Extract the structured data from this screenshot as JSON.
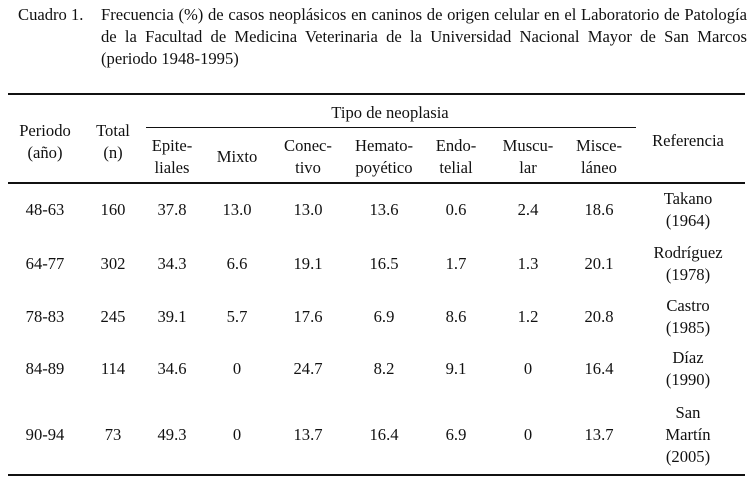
{
  "caption": {
    "label": "Cuadro 1.",
    "text": "Frecuencia (%) de casos neoplásicos en caninos de origen celular en el Laboratorio de Patología de la Facultad de Medicina Veterinaria de la Universidad Nacional Mayor de San Marcos (periodo 1948-1995)"
  },
  "table": {
    "group_header": "Tipo de neoplasia",
    "headers": {
      "periodo": "Periodo\n(año)",
      "total": "Total\n(n)",
      "epiteliales": "Epite-\nliales",
      "mixto": "Mixto",
      "conectivo": "Conec-\ntivo",
      "hematopoyetico": "Hemato-\npoyético",
      "endotelial": "Endo-\ntelial",
      "muscular": "Muscu-\nlar",
      "miscelaneo": "Misce-\nláneo",
      "referencia": "Referencia"
    },
    "rows": [
      {
        "periodo": "48-63",
        "total": "160",
        "epiteliales": "37.8",
        "mixto": "13.0",
        "conectivo": "13.0",
        "hematopoyetico": "13.6",
        "endotelial": "0.6",
        "muscular": "2.4",
        "miscelaneo": "18.6",
        "referencia": "Takano\n(1964)"
      },
      {
        "periodo": "64-77",
        "total": "302",
        "epiteliales": "34.3",
        "mixto": "6.6",
        "conectivo": "19.1",
        "hematopoyetico": "16.5",
        "endotelial": "1.7",
        "muscular": "1.3",
        "miscelaneo": "20.1",
        "referencia": "Rodríguez\n(1978)"
      },
      {
        "periodo": "78-83",
        "total": "245",
        "epiteliales": "39.1",
        "mixto": "5.7",
        "conectivo": "17.6",
        "hematopoyetico": "6.9",
        "endotelial": "8.6",
        "muscular": "1.2",
        "miscelaneo": "20.8",
        "referencia": "Castro\n(1985)"
      },
      {
        "periodo": "84-89",
        "total": "114",
        "epiteliales": "34.6",
        "mixto": "0",
        "conectivo": "24.7",
        "hematopoyetico": "8.2",
        "endotelial": "9.1",
        "muscular": "0",
        "miscelaneo": "16.4",
        "referencia": "Díaz\n(1990)"
      },
      {
        "periodo": "90-94",
        "total": "73",
        "epiteliales": "49.3",
        "mixto": "0",
        "conectivo": "13.7",
        "hematopoyetico": "16.4",
        "endotelial": "6.9",
        "muscular": "0",
        "miscelaneo": "13.7",
        "referencia": "San\nMartín\n(2005)"
      }
    ]
  }
}
